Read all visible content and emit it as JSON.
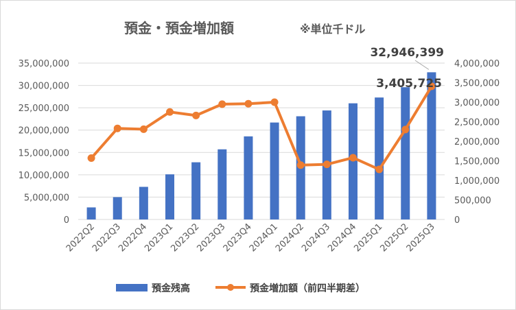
{
  "chart_data": {
    "type": "bar+line",
    "title": "預金・預金増加額",
    "title_note": "※単位千ドル",
    "categories": [
      "2022Q2",
      "2022Q3",
      "2022Q4",
      "2023Q1",
      "2023Q2",
      "2023Q3",
      "2023Q4",
      "2024Q1",
      "2024Q2",
      "2024Q3",
      "2024Q4",
      "2025Q1",
      "2025Q2",
      "2025Q3"
    ],
    "series": [
      {
        "name": "預金残高",
        "type": "bar",
        "axis": "left",
        "color": "#4472C4",
        "values": [
          2700000,
          5000000,
          7300000,
          10100000,
          12800000,
          15700000,
          18600000,
          21700000,
          23100000,
          24400000,
          26000000,
          27300000,
          29600000,
          32946399
        ]
      },
      {
        "name": "預金増加額（前四半期差）",
        "type": "line",
        "axis": "right",
        "color": "#ED7D31",
        "values": [
          1570000,
          2330000,
          2310000,
          2750000,
          2660000,
          2950000,
          2960000,
          3000000,
          1390000,
          1410000,
          1580000,
          1280000,
          2300000,
          3405725
        ]
      }
    ],
    "left_axis": {
      "min": 0,
      "max": 35000000,
      "step": 5000000,
      "ticks": [
        "0",
        "5,000,000",
        "10,000,000",
        "15,000,000",
        "20,000,000",
        "25,000,000",
        "30,000,000",
        "35,000,000"
      ]
    },
    "right_axis": {
      "min": 0,
      "max": 4000000,
      "step": 500000,
      "ticks": [
        "0",
        "500,000",
        "1,000,000",
        "1,500,000",
        "2,000,000",
        "2,500,000",
        "3,000,000",
        "3,500,000",
        "4,000,000"
      ]
    },
    "data_labels": {
      "bar_last": "32,946,399",
      "line_last": "3,405,725"
    },
    "legend_position": "bottom",
    "grid": true
  }
}
